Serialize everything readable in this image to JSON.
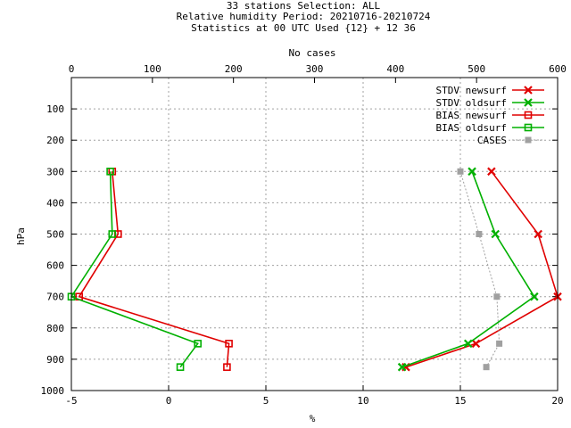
{
  "chart_data": {
    "type": "line",
    "title_lines": [
      "33 stations Selection: ALL",
      "Relative humidity  Period: 20210716-20210724",
      "Statistics at 00 UTC  Used {12} + 12 36"
    ],
    "xlabel": "%",
    "x2label": "No cases",
    "ylabel": "hPa",
    "xlim": [
      -5,
      20
    ],
    "x2lim": [
      0,
      600
    ],
    "ylim": [
      1000,
      0
    ],
    "xticks": [
      -5,
      0,
      5,
      10,
      15,
      20
    ],
    "x2ticks": [
      0,
      100,
      200,
      300,
      400,
      500,
      600
    ],
    "yticks": [
      100,
      200,
      300,
      400,
      500,
      600,
      700,
      800,
      900,
      1000
    ],
    "grid": true,
    "legend_position": "top-right",
    "series": [
      {
        "name": "STDV newsurf",
        "color": "#e00000",
        "marker": "x",
        "axis": "bottom",
        "points": [
          [
            16.6,
            300
          ],
          [
            19.0,
            500
          ],
          [
            20.0,
            700
          ],
          [
            15.8,
            850
          ],
          [
            12.2,
            925
          ]
        ]
      },
      {
        "name": "STDV oldsurf",
        "color": "#00b000",
        "marker": "x",
        "axis": "bottom",
        "points": [
          [
            15.6,
            300
          ],
          [
            16.8,
            500
          ],
          [
            18.8,
            700
          ],
          [
            15.4,
            850
          ],
          [
            12.0,
            925
          ]
        ]
      },
      {
        "name": "BIAS newsurf",
        "color": "#e00000",
        "marker": "square",
        "axis": "bottom",
        "points": [
          [
            -2.9,
            300
          ],
          [
            -2.6,
            500
          ],
          [
            -4.6,
            700
          ],
          [
            3.1,
            850
          ],
          [
            3.0,
            925
          ]
        ]
      },
      {
        "name": "BIAS oldsurf",
        "color": "#00b000",
        "marker": "square",
        "axis": "bottom",
        "points": [
          [
            -3.0,
            300
          ],
          [
            -2.9,
            500
          ],
          [
            -5.0,
            700
          ],
          [
            1.5,
            850
          ],
          [
            0.6,
            925
          ]
        ]
      },
      {
        "name": "CASES",
        "color": "#a0a0a0",
        "marker": "filled-square",
        "axis": "top",
        "dashed": true,
        "points": [
          [
            480,
            300
          ],
          [
            503,
            500
          ],
          [
            525,
            700
          ],
          [
            528,
            850
          ],
          [
            512,
            925
          ]
        ]
      }
    ]
  }
}
